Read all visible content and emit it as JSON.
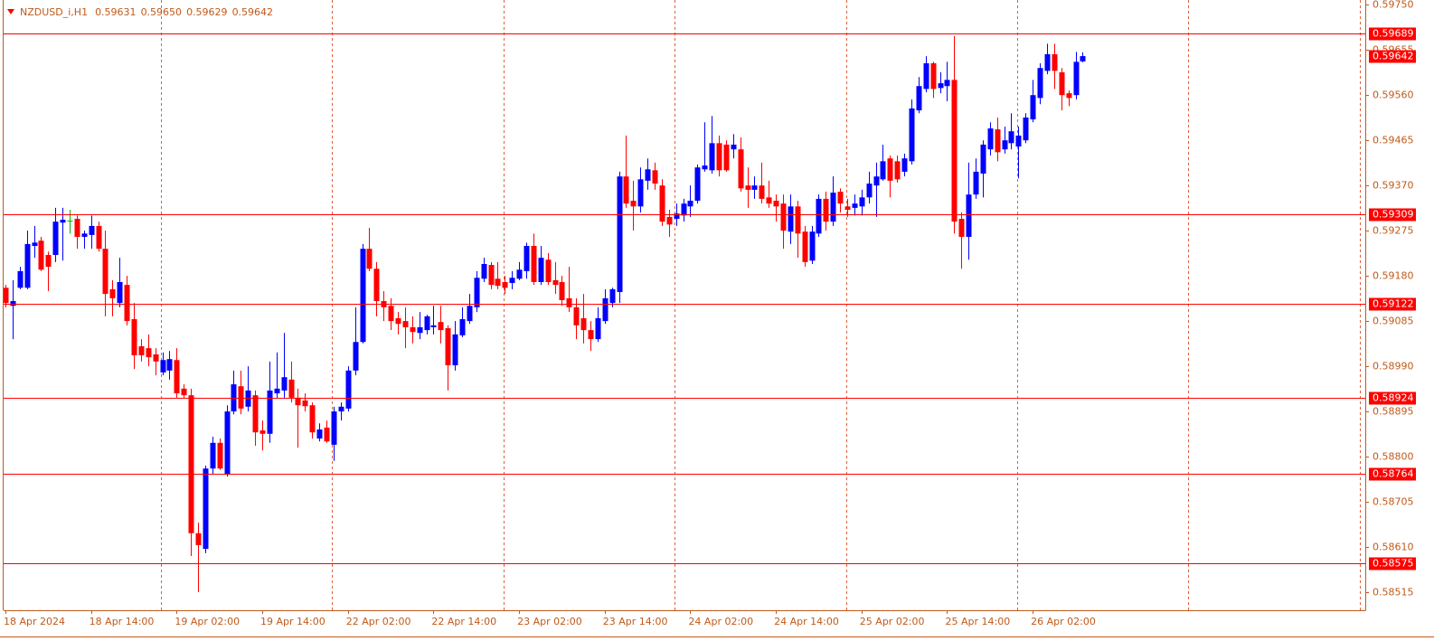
{
  "chart_data": {
    "type": "candlestick",
    "title": "NZDUSD_i,H1",
    "header_values": [
      "0.59631",
      "0.59650",
      "0.59629",
      "0.59642"
    ],
    "categories": [
      "18 Apr 2024",
      null,
      null,
      null,
      null,
      null,
      null,
      null,
      null,
      null,
      null,
      null,
      "18 Apr 14:00",
      null,
      null,
      null,
      null,
      null,
      null,
      null,
      null,
      null,
      null,
      null,
      "19 Apr 02:00",
      null,
      null,
      null,
      null,
      null,
      null,
      null,
      null,
      null,
      null,
      null,
      "19 Apr 14:00",
      null,
      null,
      null,
      null,
      null,
      null,
      null,
      null,
      null,
      null,
      null,
      "22 Apr 02:00",
      null,
      null,
      null,
      null,
      null,
      null,
      null,
      null,
      null,
      null,
      null,
      "22 Apr 14:00",
      null,
      null,
      null,
      null,
      null,
      null,
      null,
      null,
      null,
      null,
      null,
      "23 Apr 02:00",
      null,
      null,
      null,
      null,
      null,
      null,
      null,
      null,
      null,
      null,
      null,
      "23 Apr 14:00",
      null,
      null,
      null,
      null,
      null,
      null,
      null,
      null,
      null,
      null,
      null,
      "24 Apr 02:00",
      null,
      null,
      null,
      null,
      null,
      null,
      null,
      null,
      null,
      null,
      null,
      "24 Apr 14:00",
      null,
      null,
      null,
      null,
      null,
      null,
      null,
      null,
      null,
      null,
      null,
      "25 Apr 02:00",
      null,
      null,
      null,
      null,
      null,
      null,
      null,
      null,
      null,
      null,
      null,
      "25 Apr 14:00",
      null,
      null,
      null,
      null,
      null,
      null,
      null,
      null,
      null,
      null,
      null,
      "26 Apr 02:00",
      null,
      null,
      null,
      null,
      null,
      null,
      null
    ],
    "open": [
      0.59155,
      0.59117,
      0.59155,
      0.59155,
      0.59243,
      0.59254,
      0.59224,
      0.59224,
      0.59292,
      0.59296,
      0.593,
      0.59262,
      0.59266,
      0.59285,
      0.59237,
      0.59152,
      0.59123,
      0.59161,
      0.59089,
      0.59032,
      0.59028,
      0.59015,
      0.58977,
      0.58981,
      0.59003,
      0.58943,
      0.58929,
      0.58639,
      0.58606,
      0.58775,
      0.58829,
      0.58762,
      0.58895,
      0.58948,
      0.58905,
      0.58929,
      0.58855,
      0.58848,
      0.58933,
      0.58939,
      0.58962,
      0.58924,
      0.58918,
      0.58908,
      0.58838,
      0.58861,
      0.58825,
      0.58895,
      0.58901,
      0.58981,
      0.59041,
      0.59237,
      0.59195,
      0.59127,
      0.59117,
      0.59091,
      0.59085,
      0.59072,
      0.5906,
      0.59066,
      0.59072,
      0.59083,
      0.5907,
      0.58992,
      0.59055,
      0.59085,
      0.59114,
      0.59174,
      0.59203,
      0.59174,
      0.59167,
      0.59165,
      0.59174,
      0.5919,
      0.59243,
      0.59167,
      0.59214,
      0.59171,
      0.59167,
      0.59133,
      0.59114,
      0.59091,
      0.59066,
      0.59047,
      0.59085,
      0.59123,
      0.59146,
      0.59389,
      0.59338,
      0.59326,
      0.5938,
      0.59402,
      0.5937,
      0.59304,
      0.593,
      0.59307,
      0.59326,
      0.59338,
      0.59404,
      0.59402,
      0.59459,
      0.59456,
      0.59446,
      0.59446,
      0.5937,
      0.59361,
      0.5937,
      0.59345,
      0.59338,
      0.59332,
      0.59273,
      0.59326,
      0.59273,
      0.59212,
      0.59269,
      0.59342,
      0.59294,
      0.59357,
      0.59326,
      0.59323,
      0.59326,
      0.59345,
      0.5937,
      0.59383,
      0.59427,
      0.59421,
      0.59399,
      0.59421,
      0.59528,
      0.59573,
      0.59627,
      0.59575,
      0.59579,
      0.59592,
      0.593,
      0.59262,
      0.59351,
      0.59395,
      0.59446,
      0.59488,
      0.59446,
      0.59459,
      0.59452,
      0.59465,
      0.59509,
      0.59554,
      0.59611,
      0.59646,
      0.59608,
      0.59564,
      0.5956,
      0.59631
    ],
    "high": [
      0.59161,
      0.59171,
      0.59199,
      0.59275,
      0.59285,
      0.59262,
      0.59231,
      0.59323,
      0.59323,
      0.59319,
      0.59307,
      0.59275,
      0.59307,
      0.59294,
      0.59275,
      0.59171,
      0.59218,
      0.5918,
      0.59123,
      0.59047,
      0.59057,
      0.59028,
      0.59019,
      0.59022,
      0.59028,
      0.58952,
      0.58943,
      0.58661,
      0.58781,
      0.58842,
      0.58838,
      0.58908,
      0.58981,
      0.58981,
      0.5899,
      0.58939,
      0.58876,
      0.59,
      0.59019,
      0.5906,
      0.59,
      0.58943,
      0.58933,
      0.58914,
      0.5887,
      0.58876,
      0.58905,
      0.58914,
      0.5899,
      0.59114,
      0.59247,
      0.59281,
      0.59209,
      0.59148,
      0.59133,
      0.59104,
      0.59114,
      0.59095,
      0.59104,
      0.59098,
      0.59117,
      0.59117,
      0.59076,
      0.59085,
      0.59114,
      0.59142,
      0.5919,
      0.59218,
      0.59209,
      0.59209,
      0.5918,
      0.5919,
      0.59209,
      0.5925,
      0.59269,
      0.59243,
      0.59228,
      0.59209,
      0.5918,
      0.59199,
      0.59133,
      0.59142,
      0.59085,
      0.59114,
      0.59152,
      0.59155,
      0.59399,
      0.59475,
      0.5938,
      0.59408,
      0.59427,
      0.59418,
      0.59383,
      0.59319,
      0.59332,
      0.59342,
      0.5937,
      0.59414,
      0.59503,
      0.59516,
      0.59475,
      0.59465,
      0.59478,
      0.59471,
      0.59408,
      0.59389,
      0.59418,
      0.5938,
      0.59351,
      0.59351,
      0.59351,
      0.59338,
      0.59285,
      0.59285,
      0.59351,
      0.59357,
      0.59389,
      0.59364,
      0.59342,
      0.59351,
      0.59361,
      0.59399,
      0.59418,
      0.59456,
      0.59433,
      0.59433,
      0.59437,
      0.59551,
      0.59598,
      0.59642,
      0.5963,
      0.59608,
      0.5963,
      0.59684,
      0.59313,
      0.59418,
      0.59427,
      0.59465,
      0.59503,
      0.59513,
      0.59494,
      0.59522,
      0.59494,
      0.59522,
      0.59592,
      0.59627,
      0.59668,
      0.59668,
      0.59617,
      0.5957,
      0.59651,
      0.5965
    ],
    "low": [
      0.59114,
      0.59047,
      0.59152,
      0.59152,
      0.59218,
      0.5919,
      0.59148,
      0.59209,
      0.59212,
      0.59269,
      0.59237,
      0.59237,
      0.59237,
      0.59231,
      0.59095,
      0.59095,
      0.59114,
      0.59076,
      0.58984,
      0.59,
      0.5899,
      0.58971,
      0.58971,
      0.58962,
      0.58924,
      0.58924,
      0.58591,
      0.58515,
      0.58597,
      0.58762,
      0.58772,
      0.58758,
      0.58889,
      0.58889,
      0.58895,
      0.58823,
      0.58813,
      0.58829,
      0.58924,
      0.58924,
      0.58914,
      0.58819,
      0.58895,
      0.58838,
      0.58832,
      0.58829,
      0.58791,
      0.58876,
      0.58895,
      0.58971,
      0.59038,
      0.5919,
      0.59095,
      0.59085,
      0.59066,
      0.59057,
      0.59028,
      0.59038,
      0.59047,
      0.59057,
      0.59057,
      0.59038,
      0.58939,
      0.58981,
      0.59051,
      0.59079,
      0.59104,
      0.59167,
      0.59152,
      0.59152,
      0.59142,
      0.59152,
      0.59171,
      0.59174,
      0.59161,
      0.59161,
      0.59161,
      0.59142,
      0.59117,
      0.59104,
      0.59047,
      0.59038,
      0.59022,
      0.59041,
      0.59079,
      0.59114,
      0.59123,
      0.59323,
      0.59275,
      0.59313,
      0.59361,
      0.59361,
      0.59285,
      0.59262,
      0.59285,
      0.59294,
      0.59304,
      0.59332,
      0.59399,
      0.59395,
      0.59389,
      0.59399,
      0.59427,
      0.59357,
      0.59323,
      0.59342,
      0.59332,
      0.59323,
      0.59294,
      0.59237,
      0.59247,
      0.59218,
      0.59199,
      0.59205,
      0.59262,
      0.59275,
      0.59285,
      0.59313,
      0.59304,
      0.59307,
      0.59307,
      0.59332,
      0.59304,
      0.5938,
      0.59345,
      0.59376,
      0.59389,
      0.59414,
      0.59522,
      0.59566,
      0.59554,
      0.59564,
      0.59547,
      0.59269,
      0.59195,
      0.59214,
      0.59342,
      0.59345,
      0.59433,
      0.59421,
      0.59437,
      0.59446,
      0.59385,
      0.59459,
      0.59503,
      0.59541,
      0.59604,
      0.59573,
      0.59528,
      0.59537,
      0.59551,
      0.59629
    ],
    "close": [
      0.59123,
      0.59127,
      0.5919,
      0.59247,
      0.5925,
      0.59193,
      0.59199,
      0.59294,
      0.59298,
      0.59296,
      0.59262,
      0.59269,
      0.59285,
      0.59237,
      0.59142,
      0.59133,
      0.59167,
      0.59085,
      0.59013,
      0.59013,
      0.59009,
      0.59,
      0.59003,
      0.59005,
      0.58933,
      0.58929,
      0.58639,
      0.58614,
      0.58775,
      0.58829,
      0.58775,
      0.58895,
      0.58952,
      0.58901,
      0.58939,
      0.58851,
      0.58848,
      0.58939,
      0.58943,
      0.58967,
      0.58924,
      0.58908,
      0.58906,
      0.58851,
      0.58857,
      0.58832,
      0.58895,
      0.58905,
      0.58981,
      0.59041,
      0.59237,
      0.59195,
      0.59127,
      0.59114,
      0.59085,
      0.59079,
      0.59072,
      0.59062,
      0.59072,
      0.59095,
      0.59076,
      0.59066,
      0.58992,
      0.59057,
      0.59089,
      0.59117,
      0.59176,
      0.59205,
      0.59161,
      0.59159,
      0.59155,
      0.59176,
      0.59193,
      0.59243,
      0.59167,
      0.59218,
      0.59167,
      0.59161,
      0.59129,
      0.59114,
      0.59076,
      0.59066,
      0.59047,
      0.59091,
      0.59133,
      0.59152,
      0.59389,
      0.59332,
      0.59326,
      0.59383,
      0.59404,
      0.59374,
      0.59294,
      0.59288,
      0.59311,
      0.59332,
      0.59338,
      0.59408,
      0.59412,
      0.59459,
      0.59402,
      0.59402,
      0.59456,
      0.59364,
      0.59361,
      0.5937,
      0.59342,
      0.59332,
      0.59326,
      0.59275,
      0.59326,
      0.59269,
      0.59209,
      0.59273,
      0.59342,
      0.59294,
      0.59355,
      0.59332,
      0.59319,
      0.59332,
      0.59345,
      0.59374,
      0.59389,
      0.59421,
      0.5938,
      0.59383,
      0.59427,
      0.59532,
      0.59579,
      0.59627,
      0.59573,
      0.59585,
      0.59592,
      0.59294,
      0.59262,
      0.59351,
      0.59399,
      0.59456,
      0.5949,
      0.5944,
      0.59465,
      0.59484,
      0.59475,
      0.59513,
      0.5956,
      0.59617,
      0.59646,
      0.59611,
      0.5956,
      0.59554,
      0.5963,
      0.59642
    ],
    "up_color": "#0000ff",
    "down_color": "#ff0000",
    "doji_color": "#00b000",
    "ylim": [
      0.58477,
      0.5976
    ],
    "yticks": [
      {
        "value": 0.5975,
        "label": "0.59750"
      },
      0.59655,
      {
        "value": 0.5956,
        "label": "0.59560"
      },
      0.59465,
      {
        "value": 0.5937,
        "label": "0.59370"
      },
      0.59275,
      {
        "value": 0.5918,
        "label": "0.59180"
      },
      0.59085,
      {
        "value": 0.5899,
        "label": "0.58990"
      },
      0.58895,
      {
        "value": 0.588,
        "label": "0.58800"
      },
      0.58705,
      {
        "value": 0.5861,
        "label": "0.58610"
      },
      0.58515
    ],
    "levels": [
      0.59689,
      0.59309,
      0.59122,
      0.58924,
      0.58764,
      0.58575
    ],
    "level_color": "#ff0000",
    "current_price": 0.59642
  }
}
